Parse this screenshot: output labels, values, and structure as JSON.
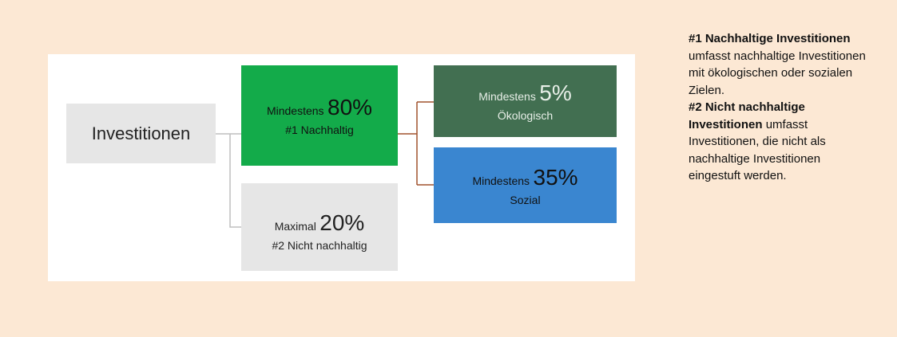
{
  "nodes": [
    {
      "label": "Investitionen"
    },
    {
      "prefix": "Mindestens",
      "value": "80%",
      "label": "#1 Nachhaltig"
    },
    {
      "prefix": "Maximal",
      "value": "20%",
      "label": "#2 Nicht nachhaltig"
    },
    {
      "prefix": "Mindestens",
      "value": "5%",
      "label": "Ökologisch"
    },
    {
      "prefix": "Mindestens",
      "value": "35%",
      "label": "Sozial"
    }
  ],
  "legend": [
    {
      "term": "#1 Nachhaltige Investitionen",
      "text": "umfasst nachhaltige Investitionen mit ökologischen oder sozialen Zielen."
    },
    {
      "term": "#2 Nicht nachhaltige Investitionen",
      "text": "umfasst Investitionen, die nicht als nachhaltige Investitionen eingestuft werden."
    }
  ]
}
